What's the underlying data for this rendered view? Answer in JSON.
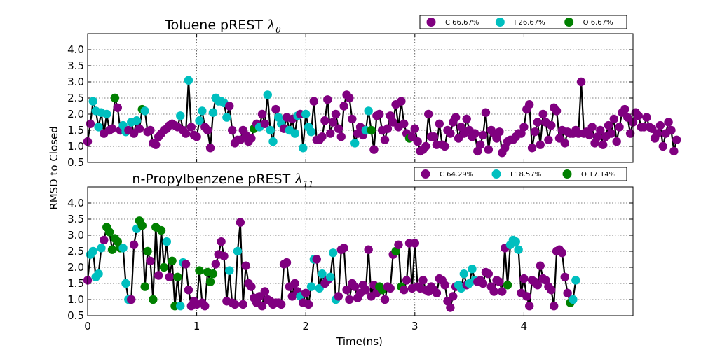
{
  "chart_data": [
    {
      "type": "line",
      "title": "Toluene pREST",
      "title_symbol": "λ",
      "title_subscript": "0",
      "ylabel": "RMSD to Closed",
      "xlabel": "",
      "xlim": [
        0,
        5
      ],
      "ylim": [
        0.5,
        4.5
      ],
      "xticks": [
        0,
        1,
        2,
        3,
        4
      ],
      "yticks": [
        0.5,
        1.0,
        1.5,
        2.0,
        2.5,
        3.0,
        3.5,
        4.0
      ],
      "ytick_labels": [
        "0.5",
        "1.0",
        "1.5",
        "2.0",
        "2.5",
        "3.0",
        "3.5",
        "4.0"
      ],
      "show_xtick_labels": false,
      "grid": true,
      "legend_placement": "top-right",
      "legend": [
        {
          "label": "C 66.67%",
          "color": "#800080"
        },
        {
          "label": "I 26.67%",
          "color": "#00BFBF"
        },
        {
          "label": "O 6.67%",
          "color": "#008000"
        }
      ],
      "state_colors": {
        "C": "#800080",
        "I": "#00BFBF",
        "O": "#008000"
      },
      "line_color": "#000000",
      "dx": 0.025,
      "y": [
        1.15,
        1.7,
        2.4,
        2.1,
        1.6,
        2.05,
        1.4,
        2.0,
        1.5,
        1.55,
        2.5,
        2.2,
        1.5,
        1.65,
        1.45,
        1.5,
        1.75,
        1.4,
        1.8,
        1.55,
        2.15,
        2.1,
        1.45,
        1.5,
        1.1,
        1.05,
        1.3,
        1.4,
        1.5,
        1.55,
        1.65,
        1.7,
        1.65,
        1.6,
        1.95,
        1.5,
        1.4,
        3.05,
        1.6,
        1.35,
        1.3,
        1.8,
        2.1,
        1.6,
        1.5,
        0.95,
        2.05,
        2.5,
        2.4,
        2.4,
        2.35,
        1.9,
        2.25,
        1.5,
        1.1,
        1.2,
        1.2,
        1.5,
        1.35,
        1.15,
        1.25,
        1.55,
        1.7,
        1.6,
        2.0,
        1.7,
        2.6,
        1.5,
        1.15,
        2.15,
        1.9,
        1.7,
        1.55,
        1.9,
        1.5,
        1.85,
        1.4,
        1.95,
        2.0,
        0.95,
        2.0,
        1.6,
        1.45,
        2.4,
        1.2,
        1.2,
        1.3,
        1.8,
        2.45,
        1.4,
        1.75,
        2.0,
        1.55,
        1.3,
        2.25,
        2.6,
        2.5,
        1.85,
        1.1,
        1.4,
        1.6,
        1.35,
        1.5,
        2.1,
        1.5,
        0.9,
        1.95,
        2.0,
        1.5,
        1.2,
        1.55,
        1.95,
        1.75,
        2.3,
        1.6,
        2.4,
        1.7,
        1.4,
        1.25,
        1.3,
        1.55,
        1.15,
        0.85,
        0.9,
        1.0,
        2.0,
        1.3,
        1.3,
        1.05,
        1.7,
        1.05,
        1.0,
        1.5,
        1.4,
        1.75,
        1.9,
        1.25,
        1.6,
        1.4,
        1.85,
        1.5,
        1.3,
        1.4,
        0.85,
        1.05,
        1.35,
        2.05,
        0.9,
        1.5,
        1.4,
        1.25,
        1.45,
        0.8,
        0.95,
        1.15,
        1.2,
        1.2,
        1.3,
        1.4,
        1.4,
        1.6,
        2.15,
        2.3,
        0.95,
        1.45,
        1.75,
        1.05,
        2.0,
        1.75,
        1.2,
        1.65,
        2.2,
        2.1,
        1.25,
        1.5,
        1.1,
        1.45,
        1.4,
        1.4,
        1.5,
        1.4,
        3.0,
        1.4,
        1.45,
        1.35,
        1.6,
        1.1,
        1.3,
        1.5,
        1.05,
        1.3,
        1.65,
        1.4,
        1.85,
        1.15,
        1.6,
        2.05,
        2.15,
        1.9,
        1.4,
        1.75,
        2.05,
        1.95,
        1.6,
        1.6,
        1.9,
        1.6,
        1.55,
        1.25,
        1.4,
        1.65,
        1.0,
        1.4,
        1.75,
        1.5,
        0.85,
        1.2
      ],
      "states": "CCIIIICICCGCCIICICICGICCCCCCCCCCCCICCICCCIICCCIIIIIICCCCCCCCCGCICCIIICIICCICIICIIIICCCCCCCCCCCCCCCICCCIIGCCCCCCCCCCCCCGCCCCCCCCCCCCCCCCCCCCCCCCCCCCCCCCCCCCCCCCCCCCCCCCCCCCCCCCCCCCCCCCCCCCCCCCCCCCCCCCCCCCCCCCCCCCCCCCCCCCCCCC"
    },
    {
      "type": "line",
      "title": "n-Propylbenzene pREST",
      "title_symbol": "λ",
      "title_subscript": "11",
      "ylabel": "",
      "xlabel": "Time(ns)",
      "xlim": [
        0,
        5
      ],
      "ylim": [
        0.5,
        4.5
      ],
      "xticks": [
        0,
        1,
        2,
        3,
        4
      ],
      "xtick_labels": [
        "0",
        "1",
        "2",
        "3",
        "4"
      ],
      "yticks": [
        0.5,
        1.0,
        1.5,
        2.0,
        2.5,
        3.0,
        3.5,
        4.0
      ],
      "ytick_labels": [
        "0.5",
        "1.0",
        "1.5",
        "2.0",
        "2.5",
        "3.0",
        "3.5",
        "4.0"
      ],
      "show_xtick_labels": true,
      "grid": true,
      "legend_placement": "top-right",
      "legend": [
        {
          "label": "C 64.29%",
          "color": "#800080"
        },
        {
          "label": "I 18.57%",
          "color": "#00BFBF"
        },
        {
          "label": "O 17.14%",
          "color": "#008000"
        }
      ],
      "state_colors": {
        "C": "#800080",
        "I": "#00BFBF",
        "O": "#008000"
      },
      "line_color": "#000000",
      "dx": 0.025,
      "y": [
        1.6,
        2.4,
        2.5,
        1.7,
        1.8,
        2.6,
        2.85,
        3.25,
        3.1,
        2.55,
        2.9,
        2.8,
        2.6,
        2.6,
        1.5,
        1.0,
        1.0,
        2.7,
        3.2,
        3.45,
        3.3,
        1.4,
        2.5,
        2.2,
        1.0,
        3.25,
        1.75,
        3.15,
        2.0,
        2.8,
        1.7,
        2.2,
        0.8,
        1.7,
        0.8,
        2.15,
        2.1,
        1.3,
        0.8,
        0.95,
        0.85,
        1.9,
        0.9,
        0.8,
        1.85,
        1.55,
        1.8,
        2.1,
        2.4,
        2.8,
        2.35,
        0.95,
        1.9,
        0.9,
        0.85,
        2.5,
        3.4,
        0.85,
        2.05,
        1.5,
        1.4,
        1.05,
        0.9,
        1.1,
        0.8,
        1.25,
        1.0,
        0.95,
        0.85,
        0.9,
        0.9,
        0.85,
        2.1,
        2.15,
        1.4,
        1.1,
        1.5,
        1.25,
        1.1,
        0.9,
        1.2,
        0.85,
        1.4,
        2.25,
        2.25,
        1.35,
        1.8,
        1.5,
        1.6,
        1.7,
        2.45,
        1.0,
        1.1,
        2.55,
        2.6,
        1.3,
        1.0,
        1.5,
        1.4,
        1.05,
        1.2,
        1.45,
        1.3,
        2.55,
        1.1,
        1.45,
        1.2,
        1.4,
        1.3,
        1.0,
        1.4,
        1.35,
        2.4,
        2.5,
        2.7,
        1.4,
        1.3,
        1.6,
        2.75,
        1.35,
        2.75,
        1.4,
        1.35,
        1.6,
        1.3,
        1.25,
        1.4,
        1.3,
        1.2,
        1.65,
        1.6,
        1.45,
        0.95,
        0.75,
        1.1,
        1.4,
        1.45,
        1.35,
        1.8,
        1.45,
        1.5,
        1.95,
        1.6,
        1.55,
        1.6,
        1.5,
        1.85,
        1.8,
        1.4,
        1.25,
        1.6,
        1.55,
        1.25,
        2.6,
        1.45,
        2.7,
        2.85,
        2.8,
        2.55,
        1.2,
        1.65,
        1.1,
        0.8,
        1.6,
        1.55,
        1.45,
        2.05,
        1.65,
        1.6,
        1.4,
        1.3,
        0.8,
        2.5,
        2.55,
        2.45,
        1.7,
        1.2,
        0.9,
        1.0,
        1.6
      ],
      "states": "CIIIIICOOOOOOIIICCIOOOOCOOCOOICOOOIICCCCCOCCOOOCCCCCICCICCCCCCCCCCCCCCCCCCCCCCICCCIICIICCIIICCCCCCCCCCCCCCCOOCCCCOCOCCCCCCCCCCCCCCCCCCCCIIICIIICCCCCCCCCCCOIIIICCCCCCCCCCCCCCCCCCOIIICCCCC"
    }
  ]
}
